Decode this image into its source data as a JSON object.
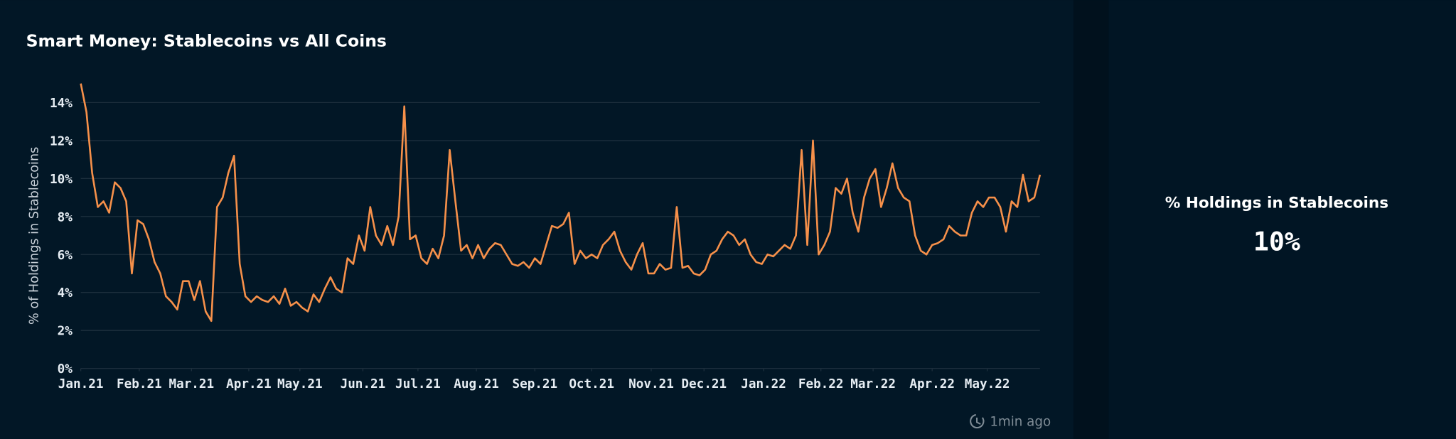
{
  "chart_data": {
    "type": "line",
    "title": "Smart Money: Stablecoins vs All Coins",
    "y_label": "% of Holdings in Stablecoins",
    "xlim": [
      0,
      16.9
    ],
    "xticks": [
      {
        "value": 0,
        "label": "Jan.21"
      },
      {
        "value": 1.03,
        "label": "Feb.21"
      },
      {
        "value": 1.95,
        "label": "Mar.21"
      },
      {
        "value": 2.96,
        "label": "Apr.21"
      },
      {
        "value": 3.86,
        "label": "May.21"
      },
      {
        "value": 4.97,
        "label": "Jun.21"
      },
      {
        "value": 5.94,
        "label": "Jul.21"
      },
      {
        "value": 6.97,
        "label": "Aug.21"
      },
      {
        "value": 8.0,
        "label": "Sep.21"
      },
      {
        "value": 9.0,
        "label": "Oct.21"
      },
      {
        "value": 10.05,
        "label": "Nov.21"
      },
      {
        "value": 10.98,
        "label": "Dec.21"
      },
      {
        "value": 12.03,
        "label": "Jan.22"
      },
      {
        "value": 13.04,
        "label": "Feb.22"
      },
      {
        "value": 13.96,
        "label": "Mar.22"
      },
      {
        "value": 15.0,
        "label": "Apr.22"
      },
      {
        "value": 15.97,
        "label": "May.22"
      }
    ],
    "ylim": [
      0,
      15
    ],
    "yticks": [
      {
        "value": 0,
        "label": "0%"
      },
      {
        "value": 2,
        "label": "2%"
      },
      {
        "value": 4,
        "label": "4%"
      },
      {
        "value": 6,
        "label": "6%"
      },
      {
        "value": 8,
        "label": "8%"
      },
      {
        "value": 10,
        "label": "10%"
      },
      {
        "value": 12,
        "label": "12%"
      },
      {
        "value": 14,
        "label": "14%"
      }
    ],
    "grid": true,
    "x": [
      0,
      0.1,
      0.2,
      0.3,
      0.4,
      0.5,
      0.6,
      0.7,
      0.8,
      0.9,
      1.0,
      1.1,
      1.2,
      1.3,
      1.4,
      1.5,
      1.6,
      1.7,
      1.8,
      1.9,
      2.0,
      2.1,
      2.2,
      2.3,
      2.4,
      2.5,
      2.6,
      2.7,
      2.8,
      2.9,
      3.0,
      3.1,
      3.2,
      3.3,
      3.4,
      3.5,
      3.6,
      3.7,
      3.8,
      3.9,
      4.0,
      4.1,
      4.2,
      4.3,
      4.4,
      4.5,
      4.6,
      4.7,
      4.8,
      4.9,
      5.0,
      5.1,
      5.2,
      5.3,
      5.4,
      5.5,
      5.6,
      5.7,
      5.8,
      5.9,
      6.0,
      6.1,
      6.2,
      6.3,
      6.4,
      6.5,
      6.6,
      6.7,
      6.8,
      6.9,
      7.0,
      7.1,
      7.2,
      7.3,
      7.4,
      7.5,
      7.6,
      7.7,
      7.8,
      7.9,
      8.0,
      8.1,
      8.2,
      8.3,
      8.4,
      8.5,
      8.6,
      8.7,
      8.8,
      8.9,
      9.0,
      9.1,
      9.2,
      9.3,
      9.4,
      9.5,
      9.6,
      9.7,
      9.8,
      9.9,
      10.0,
      10.1,
      10.2,
      10.3,
      10.4,
      10.5,
      10.6,
      10.7,
      10.8,
      10.9,
      11.0,
      11.1,
      11.2,
      11.3,
      11.4,
      11.5,
      11.6,
      11.7,
      11.8,
      11.9,
      12.0,
      12.1,
      12.2,
      12.3,
      12.4,
      12.5,
      12.6,
      12.7,
      12.8,
      12.9,
      13.0,
      13.1,
      13.2,
      13.3,
      13.4,
      13.5,
      13.6,
      13.7,
      13.8,
      13.9,
      14.0,
      14.1,
      14.2,
      14.3,
      14.4,
      14.5,
      14.6,
      14.7,
      14.8,
      14.9,
      15.0,
      15.1,
      15.2,
      15.3,
      15.4,
      15.5,
      15.6,
      15.7,
      15.8,
      15.9,
      16.0,
      16.1,
      16.2,
      16.3,
      16.4,
      16.5,
      16.6,
      16.7,
      16.8,
      16.9
    ],
    "series": [
      {
        "color": "#f6904a",
        "values": [
          15,
          13.5,
          10.3,
          8.5,
          8.8,
          8.2,
          9.8,
          9.5,
          8.8,
          5.0,
          7.8,
          7.6,
          6.8,
          5.6,
          5.0,
          3.8,
          3.5,
          3.1,
          4.6,
          4.6,
          3.6,
          4.6,
          3.0,
          2.5,
          8.5,
          9.0,
          10.3,
          11.2,
          5.5,
          3.8,
          3.5,
          3.8,
          3.6,
          3.5,
          3.8,
          3.4,
          4.2,
          3.3,
          3.5,
          3.2,
          3.0,
          3.9,
          3.5,
          4.2,
          4.8,
          4.2,
          4.0,
          5.8,
          5.5,
          7.0,
          6.2,
          8.5,
          7.0,
          6.5,
          7.5,
          6.5,
          8.0,
          13.8,
          6.8,
          7.0,
          5.8,
          5.5,
          6.3,
          5.8,
          7.0,
          11.5,
          8.8,
          6.2,
          6.5,
          5.8,
          6.5,
          5.8,
          6.3,
          6.6,
          6.5,
          6.0,
          5.5,
          5.4,
          5.6,
          5.3,
          5.8,
          5.5,
          6.5,
          7.5,
          7.4,
          7.6,
          8.2,
          5.5,
          6.2,
          5.8,
          6.0,
          5.8,
          6.5,
          6.8,
          7.2,
          6.2,
          5.6,
          5.2,
          6.0,
          6.6,
          5.0,
          5.0,
          5.5,
          5.2,
          5.3,
          8.5,
          5.3,
          5.4,
          5.0,
          4.9,
          5.2,
          6.0,
          6.2,
          6.8,
          7.2,
          7.0,
          6.5,
          6.8,
          6.0,
          5.6,
          5.5,
          6.0,
          5.9,
          6.2,
          6.5,
          6.3,
          7.0,
          11.5,
          6.5,
          12.0,
          6.0,
          6.5,
          7.2,
          9.5,
          9.2,
          10.0,
          8.2,
          7.2,
          9.0,
          10.0,
          10.5,
          8.5,
          9.5,
          10.8,
          9.5,
          9.0,
          8.8,
          7.0,
          6.2,
          6.0,
          6.5,
          6.6,
          6.8,
          7.5,
          7.2,
          7.0,
          7.0,
          8.2,
          8.8,
          8.5,
          9.0,
          9.0,
          8.5,
          7.2,
          8.8,
          8.5,
          10.2,
          8.8,
          9.0,
          10.2
        ]
      }
    ],
    "updated": "1min ago"
  },
  "kpi": {
    "title": "% Holdings in Stablecoins",
    "value": "10%"
  }
}
